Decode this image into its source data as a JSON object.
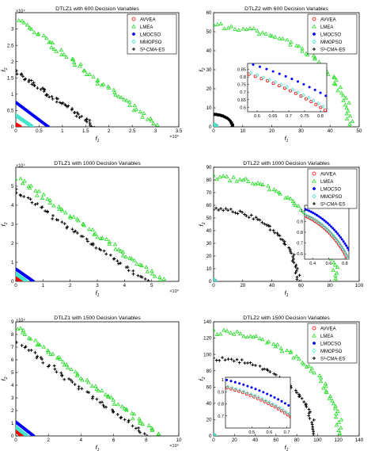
{
  "figure": {
    "legend_entries": [
      "AVVEA",
      "LMEA",
      "LMOCSO",
      "MMOPSO",
      "S³-CMA-ES"
    ],
    "series_colors": {
      "AVVEA": "#ff0000",
      "LMEA": "#22dd22",
      "LMOCSO": "#0000ff",
      "MMOPSO": "#44e6cc",
      "S³-CMA-ES": "#000000"
    },
    "series_markers": {
      "AVVEA": "circle",
      "LMEA": "triangle",
      "LMOCSO": "filled-circle",
      "MMOPSO": "diamond",
      "S³-CMA-ES": "plus"
    }
  },
  "chart_data": [
    {
      "type": "scatter",
      "title": "DTLZ1 with 600 Decision Variables",
      "xlabel": "f1",
      "ylabel": "f2",
      "xlim": [
        0,
        35000
      ],
      "ylim": [
        0,
        35000
      ],
      "xticks": [
        0,
        0.5,
        1,
        1.5,
        2,
        2.5,
        3,
        3.5
      ],
      "yticks": [
        0,
        0.5,
        1,
        1.5,
        2,
        2.5,
        3
      ],
      "exponent": "×10⁴",
      "legend": "top-right",
      "series": [
        {
          "name": "AVVEA",
          "line": [
            [
              0,
              700
            ],
            [
              900,
              0
            ]
          ]
        },
        {
          "name": "LMEA",
          "line": [
            [
              700,
              33000
            ],
            [
              30000,
              500
            ]
          ]
        },
        {
          "name": "LMOCSO",
          "line": [
            [
              0,
              7500
            ],
            [
              7000,
              0
            ]
          ]
        },
        {
          "name": "MMOPSO",
          "line": [
            [
              0,
              3500
            ],
            [
              3600,
              0
            ]
          ]
        },
        {
          "name": "S³-CMA-ES",
          "line": [
            [
              0,
              17000
            ],
            [
              17000,
              0
            ]
          ]
        }
      ]
    },
    {
      "type": "scatter",
      "title": "DTLZ2 with 600 Decision Variables",
      "xlabel": "f1",
      "ylabel": "f2",
      "xlim": [
        0,
        50
      ],
      "ylim": [
        0,
        60
      ],
      "xticks": [
        0,
        10,
        20,
        30,
        40,
        50
      ],
      "yticks": [
        0,
        10,
        20,
        30,
        40,
        50,
        60
      ],
      "series": [
        {
          "name": "LMEA",
          "curve": {
            "rx": 47,
            "ry": 53
          }
        },
        {
          "name": "S³-CMA-ES",
          "curve": {
            "rx": 6.5,
            "ry": 6.5
          }
        },
        {
          "name": "AVVEA",
          "curve": {
            "rx": 1.0,
            "ry": 1.0
          }
        },
        {
          "name": "LMOCSO",
          "curve": {
            "rx": 1.05,
            "ry": 1.05
          }
        },
        {
          "name": "MMOPSO",
          "curve": {
            "rx": 1.0,
            "ry": 1.0
          }
        }
      ],
      "inset": {
        "xlim": [
          0.57,
          0.82
        ],
        "ylim": [
          0.57,
          0.89
        ],
        "xticks": [
          0.6,
          0.65,
          0.7,
          0.75,
          0.8
        ],
        "yticks": [
          0.6,
          0.65,
          0.7,
          0.75,
          0.8,
          0.85
        ],
        "series": [
          {
            "name": "AVVEA",
            "radius": 1.0
          },
          {
            "name": "MMOPSO",
            "radius": 1.01
          },
          {
            "name": "LMOCSO",
            "radius": 1.06
          }
        ]
      }
    },
    {
      "type": "scatter",
      "title": "DTLZ1 with 1000 Decision Variables",
      "xlabel": "f1",
      "ylabel": "f2",
      "xlim": [
        0,
        60000
      ],
      "ylim": [
        0,
        60000
      ],
      "xticks": [
        0,
        1,
        2,
        3,
        4,
        5
      ],
      "yticks": [
        0,
        1,
        2,
        3,
        4,
        5
      ],
      "exponent": "×10⁴",
      "series": [
        {
          "name": "AVVEA",
          "line": [
            [
              0,
              2000
            ],
            [
              2000,
              0
            ]
          ]
        },
        {
          "name": "LMEA",
          "line": [
            [
              500,
              54000
            ],
            [
              54000,
              500
            ]
          ]
        },
        {
          "name": "LMOCSO",
          "line": [
            [
              0,
              6500
            ],
            [
              6500,
              0
            ]
          ]
        },
        {
          "name": "MMOPSO",
          "line": [
            [
              0,
              4000
            ],
            [
              4000,
              0
            ]
          ]
        },
        {
          "name": "S³-CMA-ES",
          "line": [
            [
              0,
              48000
            ],
            [
              48000,
              0
            ]
          ]
        }
      ]
    },
    {
      "type": "scatter",
      "title": "DTLZ2 with 1000 Decision Variables",
      "xlabel": "f1",
      "ylabel": "f2",
      "xlim": [
        0,
        100
      ],
      "ylim": [
        0,
        90
      ],
      "xticks": [
        0,
        20,
        40,
        60,
        80,
        100
      ],
      "yticks": [
        0,
        10,
        20,
        30,
        40,
        50,
        60,
        70,
        80,
        90
      ],
      "series": [
        {
          "name": "LMEA",
          "curve": {
            "rx": 84,
            "ry": 82
          }
        },
        {
          "name": "S³-CMA-ES",
          "curve": {
            "rx": 58,
            "ry": 57
          }
        },
        {
          "name": "AVVEA",
          "curve": {
            "rx": 1.0,
            "ry": 1.0
          }
        },
        {
          "name": "LMOCSO",
          "curve": {
            "rx": 1.05,
            "ry": 1.05
          }
        },
        {
          "name": "MMOPSO",
          "curve": {
            "rx": 1.0,
            "ry": 1.0
          }
        }
      ],
      "inset": {
        "xlim": [
          0.3,
          0.85
        ],
        "ylim": [
          0.55,
          1.05
        ],
        "xticks": [
          0.4,
          0.6,
          0.8
        ],
        "yticks": [
          0.6,
          0.7,
          0.8,
          0.9,
          1
        ],
        "series": [
          {
            "name": "AVVEA",
            "radius": 1.0
          },
          {
            "name": "MMOPSO",
            "radius": 1.01
          },
          {
            "name": "LMOCSO",
            "radius": 1.06
          }
        ]
      }
    },
    {
      "type": "scatter",
      "title": "DTLZ1 with 1500 Decision Variables",
      "xlabel": "f1",
      "ylabel": "f2",
      "xlim": [
        0,
        100000
      ],
      "ylim": [
        0,
        90000
      ],
      "xticks": [
        0,
        2,
        4,
        6,
        8,
        10
      ],
      "yticks": [
        0,
        1,
        2,
        3,
        4,
        5,
        6,
        7,
        8,
        9
      ],
      "exponent": "×10⁴",
      "series": [
        {
          "name": "AVVEA",
          "line": [
            [
              0,
              4000
            ],
            [
              4000,
              0
            ]
          ]
        },
        {
          "name": "LMEA",
          "line": [
            [
              500,
              85000
            ],
            [
              88000,
              500
            ]
          ]
        },
        {
          "name": "LMOCSO",
          "line": [
            [
              0,
              11000
            ],
            [
              11000,
              0
            ]
          ]
        },
        {
          "name": "MMOPSO",
          "line": [
            [
              0,
              7000
            ],
            [
              7000,
              0
            ]
          ]
        },
        {
          "name": "S³-CMA-ES",
          "line": [
            [
              0,
              75000
            ],
            [
              80000,
              0
            ]
          ]
        }
      ]
    },
    {
      "type": "scatter",
      "title": "DTLZ2 with 1500 Decision Variables",
      "xlabel": "f1",
      "ylabel": "f2",
      "xlim": [
        0,
        140
      ],
      "ylim": [
        0,
        140
      ],
      "xticks": [
        0,
        20,
        40,
        60,
        80,
        100,
        120,
        140
      ],
      "yticks": [
        0,
        20,
        40,
        60,
        80,
        100,
        120,
        140
      ],
      "series": [
        {
          "name": "LMEA",
          "curve": {
            "rx": 122,
            "ry": 127
          }
        },
        {
          "name": "S³-CMA-ES",
          "curve": {
            "rx": 97,
            "ry": 95
          }
        },
        {
          "name": "AVVEA",
          "curve": {
            "rx": 1.0,
            "ry": 1.0
          }
        },
        {
          "name": "LMOCSO",
          "curve": {
            "rx": 1.05,
            "ry": 1.05
          }
        },
        {
          "name": "MMOPSO",
          "curve": {
            "rx": 1.0,
            "ry": 1.0
          }
        }
      ],
      "inset": {
        "xlim": [
          0.35,
          0.72
        ],
        "ylim": [
          0.6,
          1.02
        ],
        "xticks": [
          0.5,
          0.6,
          0.7
        ],
        "yticks": [
          0.7,
          0.8,
          0.9,
          1
        ],
        "series": [
          {
            "name": "AVVEA",
            "radius": 1.0
          },
          {
            "name": "MMOPSO",
            "radius": 1.01
          },
          {
            "name": "LMOCSO",
            "radius": 1.06
          }
        ]
      }
    }
  ]
}
